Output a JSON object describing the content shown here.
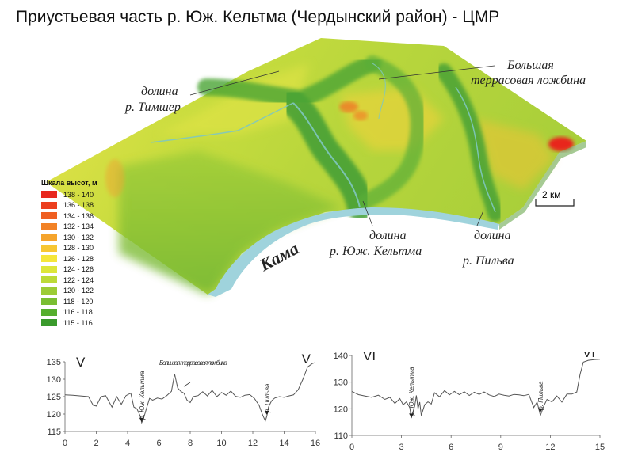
{
  "title": "Приустьевая часть р. Юж. Кельтма (Чердынский район) - ЦМР",
  "map_labels": {
    "timisher_1": "долина",
    "timisher_2": "р. Тимшер",
    "terrace_1": "Большая",
    "terrace_2": "террасовая ложбина",
    "kama": "Кама",
    "keltma_1": "долина",
    "keltma_2": "р. Юж. Кельтма",
    "pilva_1": "долина",
    "pilva_2": "р. Пильва",
    "scale_bar": "2 км"
  },
  "legend": {
    "title": "Шкала высот, м",
    "items": [
      {
        "label": "138 - 140",
        "color": "#e8281e"
      },
      {
        "label": "136 - 138",
        "color": "#ec3f1e"
      },
      {
        "label": "134 - 136",
        "color": "#ef5f22"
      },
      {
        "label": "132 - 134",
        "color": "#f28226"
      },
      {
        "label": "130 - 132",
        "color": "#f5a42c"
      },
      {
        "label": "128 - 130",
        "color": "#f7c632"
      },
      {
        "label": "126 - 128",
        "color": "#f5e63a"
      },
      {
        "label": "124 - 126",
        "color": "#dde63a"
      },
      {
        "label": "122 - 124",
        "color": "#bcda38"
      },
      {
        "label": "120 - 122",
        "color": "#9ccc36"
      },
      {
        "label": "118 - 120",
        "color": "#7abe32"
      },
      {
        "label": "116 - 118",
        "color": "#56ae2e"
      },
      {
        "label": "115 - 116",
        "color": "#3a9a2c"
      }
    ]
  },
  "chart_data": [
    {
      "type": "line",
      "title": "",
      "corner_labels": {
        "left": "V",
        "right": "V"
      },
      "xlim": [
        0,
        16
      ],
      "ylim": [
        115,
        135
      ],
      "xticks": [
        0,
        2,
        4,
        6,
        8,
        10,
        12,
        14,
        16
      ],
      "yticks": [
        115,
        120,
        125,
        130,
        135
      ],
      "annotations": [
        {
          "text": "р. Юж. Кельтма",
          "x": 4.9,
          "y": 118
        },
        {
          "text": "Большая террасовая ложбина",
          "x": 8.2,
          "y": 127
        },
        {
          "text": "р. Пильва",
          "x": 12.9,
          "y": 120
        }
      ],
      "series": [
        {
          "x": [
            0,
            0.5,
            1.0,
            1.5,
            1.8,
            2.0,
            2.3,
            2.6,
            3.0,
            3.3,
            3.6,
            3.9,
            4.2,
            4.4,
            4.6,
            4.8,
            4.9,
            5.0,
            5.2,
            5.4,
            5.6,
            5.9,
            6.2,
            6.5,
            6.8,
            7.0,
            7.2,
            7.4,
            7.6,
            7.8,
            8.0,
            8.2,
            8.5,
            8.8,
            9.1,
            9.4,
            9.7,
            10.0,
            10.3,
            10.6,
            10.9,
            11.2,
            11.5,
            11.8,
            12.1,
            12.4,
            12.6,
            12.8,
            12.9,
            13.0,
            13.2,
            13.4,
            13.7,
            14.0,
            14.3,
            14.6,
            14.9,
            15.2,
            15.5,
            15.8,
            16.0
          ],
          "y": [
            125.5,
            125.4,
            125.2,
            125,
            122.5,
            122.3,
            125,
            125.3,
            122,
            125,
            122.8,
            125.3,
            126,
            122,
            121.5,
            119.5,
            117.5,
            118.5,
            121.5,
            124.5,
            124,
            124.6,
            124.3,
            125.3,
            126.5,
            131.5,
            127.5,
            126.5,
            126,
            124,
            123.3,
            125,
            125.3,
            126.4,
            125.2,
            126.8,
            125,
            126.2,
            125.4,
            126.6,
            125.1,
            124.8,
            125.4,
            125.6,
            124.5,
            122.5,
            120,
            118,
            119.5,
            122,
            123.8,
            124.6,
            125,
            124.8,
            125.2,
            125.5,
            127,
            130,
            133.5,
            134.5,
            134.8
          ]
        }
      ]
    },
    {
      "type": "line",
      "title": "",
      "corner_labels": {
        "left": "VI",
        "right": "VI"
      },
      "xlim": [
        0,
        15
      ],
      "ylim": [
        110,
        140
      ],
      "xticks": [
        0,
        3,
        6,
        9,
        12,
        15
      ],
      "yticks": [
        110,
        120,
        130,
        140
      ],
      "annotations": [
        {
          "text": "р. Юж. Кельтма",
          "x": 3.6,
          "y": 117
        },
        {
          "text": "р. Пильва",
          "x": 11.4,
          "y": 119
        }
      ],
      "series": [
        {
          "x": [
            0,
            0.4,
            0.8,
            1.2,
            1.6,
            2.0,
            2.3,
            2.6,
            2.9,
            3.1,
            3.3,
            3.5,
            3.6,
            3.7,
            3.8,
            3.9,
            4.0,
            4.1,
            4.2,
            4.4,
            4.6,
            4.8,
            5.0,
            5.3,
            5.6,
            5.9,
            6.2,
            6.5,
            6.8,
            7.1,
            7.4,
            7.7,
            8.0,
            8.3,
            8.6,
            8.9,
            9.2,
            9.5,
            9.8,
            10.1,
            10.4,
            10.7,
            11.0,
            11.2,
            11.4,
            11.6,
            11.8,
            12.1,
            12.4,
            12.7,
            13.0,
            13.3,
            13.6,
            13.8,
            14.0,
            14.3,
            14.7,
            15.0
          ],
          "y": [
            126.5,
            125.3,
            124.8,
            124.3,
            125.1,
            123.5,
            124.3,
            122,
            123.8,
            121.5,
            122.6,
            120.5,
            116.5,
            119,
            121,
            125,
            120,
            122.5,
            117.5,
            121.5,
            122.6,
            121.8,
            126,
            124.5,
            126.8,
            125.2,
            126.5,
            125.3,
            126.4,
            125,
            126.2,
            125.4,
            126.3,
            125.2,
            124.6,
            125.5,
            125.1,
            124.8,
            125.4,
            125.2,
            124.9,
            125.4,
            120.5,
            122.5,
            117.5,
            121,
            123.5,
            122.6,
            124.8,
            122.5,
            125.5,
            125.5,
            126.3,
            133,
            137.5,
            138.2,
            138.5,
            138.6
          ]
        }
      ]
    }
  ]
}
